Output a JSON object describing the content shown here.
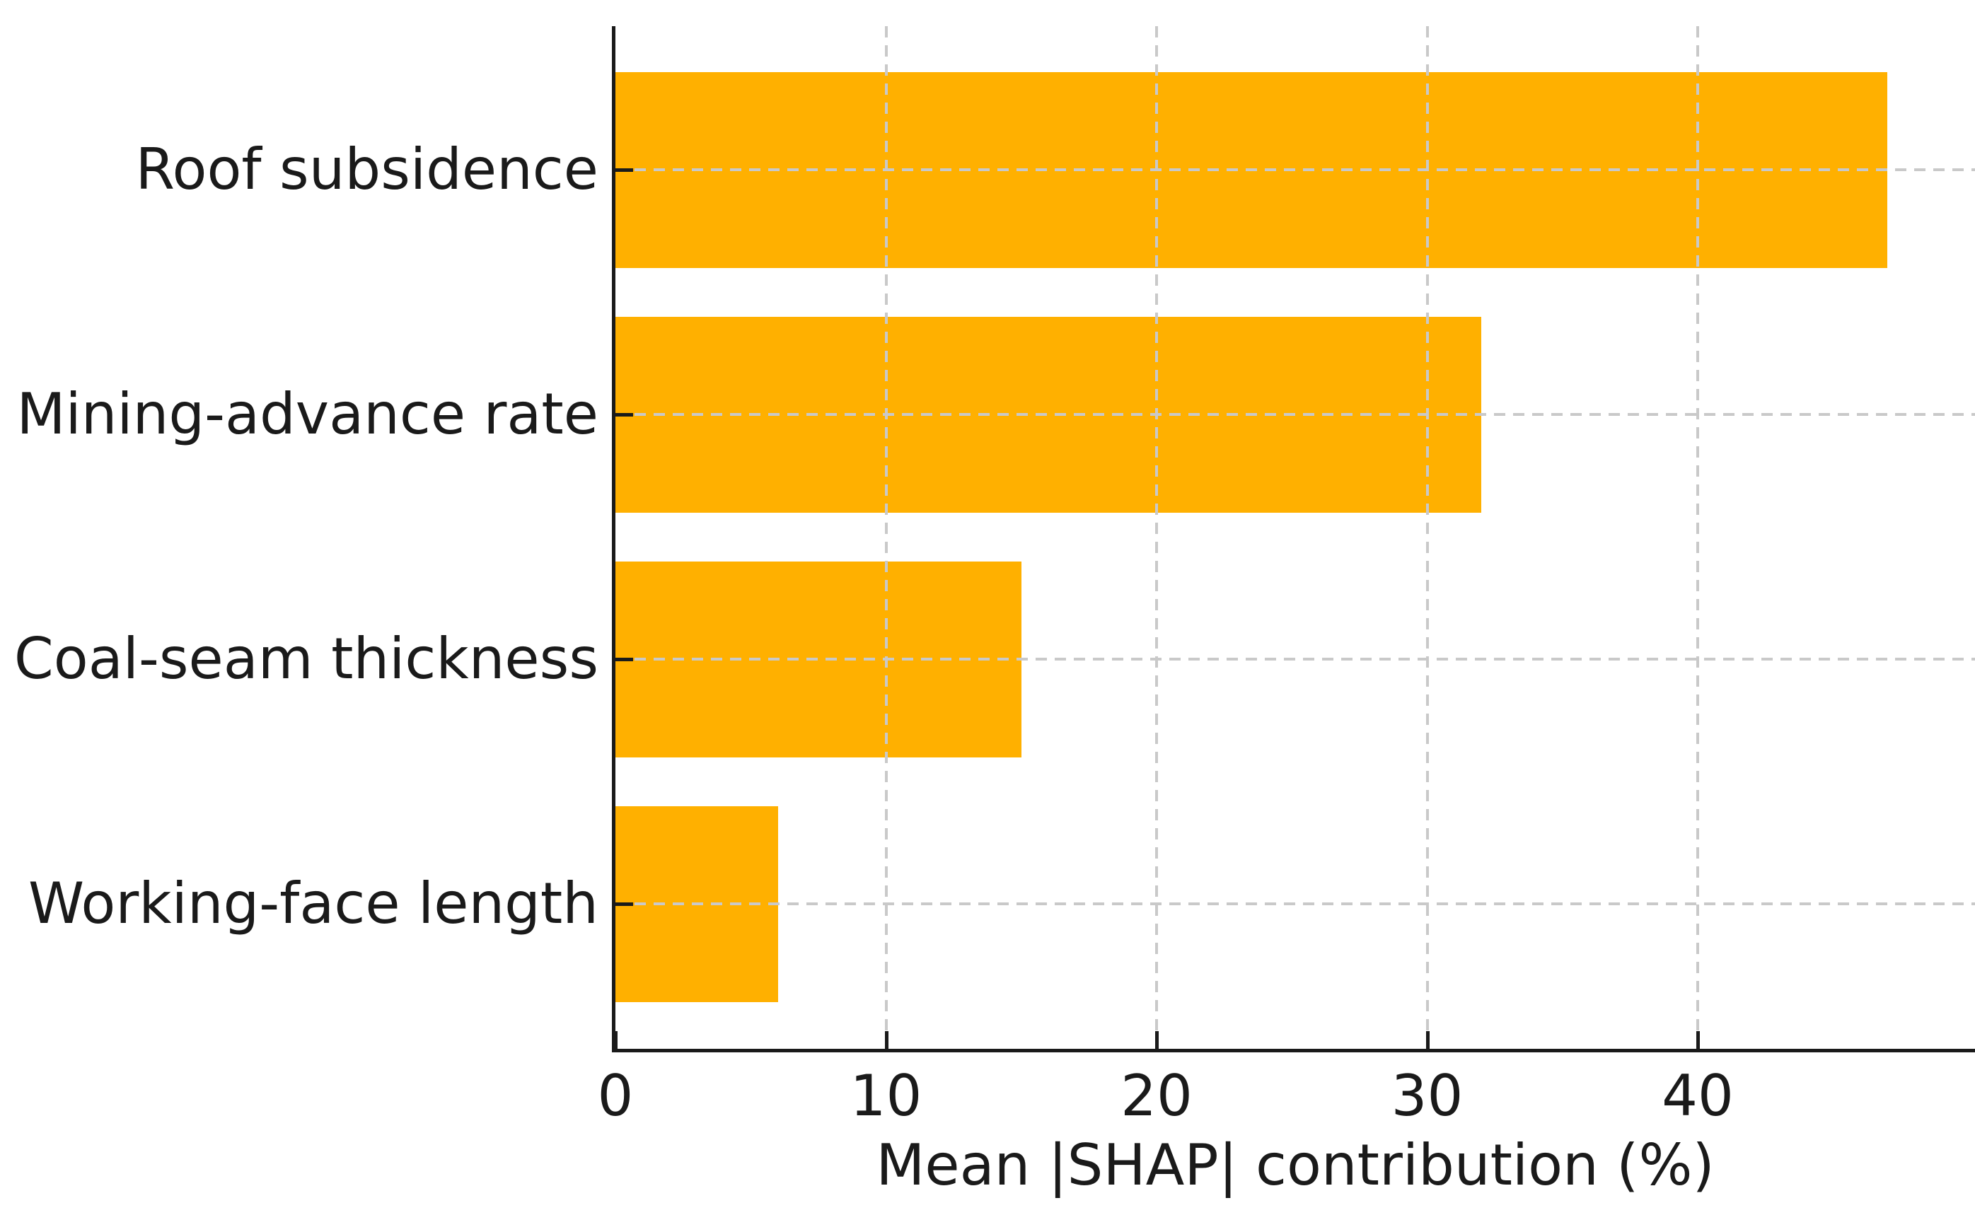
{
  "chart_data": {
    "type": "bar",
    "orientation": "horizontal",
    "title": "",
    "xlabel": "Mean |SHAP| contribution (%)",
    "ylabel": "",
    "categories": [
      "Roof subsidence",
      "Mining-advance rate",
      "Coal-seam thickness",
      "Working-face length"
    ],
    "values": [
      47,
      32,
      15,
      6
    ],
    "xticks": [
      0,
      10,
      20,
      30,
      40
    ],
    "xlim": [
      0,
      50.25
    ],
    "grid": "dashed, drawn over bars",
    "legend": "none",
    "colors": {
      "bar": "#FFB000",
      "grid": "#C9C9C9",
      "axis": "#1A1A1A",
      "text": "#1A1A1A",
      "background": "#FFFFFF"
    }
  }
}
